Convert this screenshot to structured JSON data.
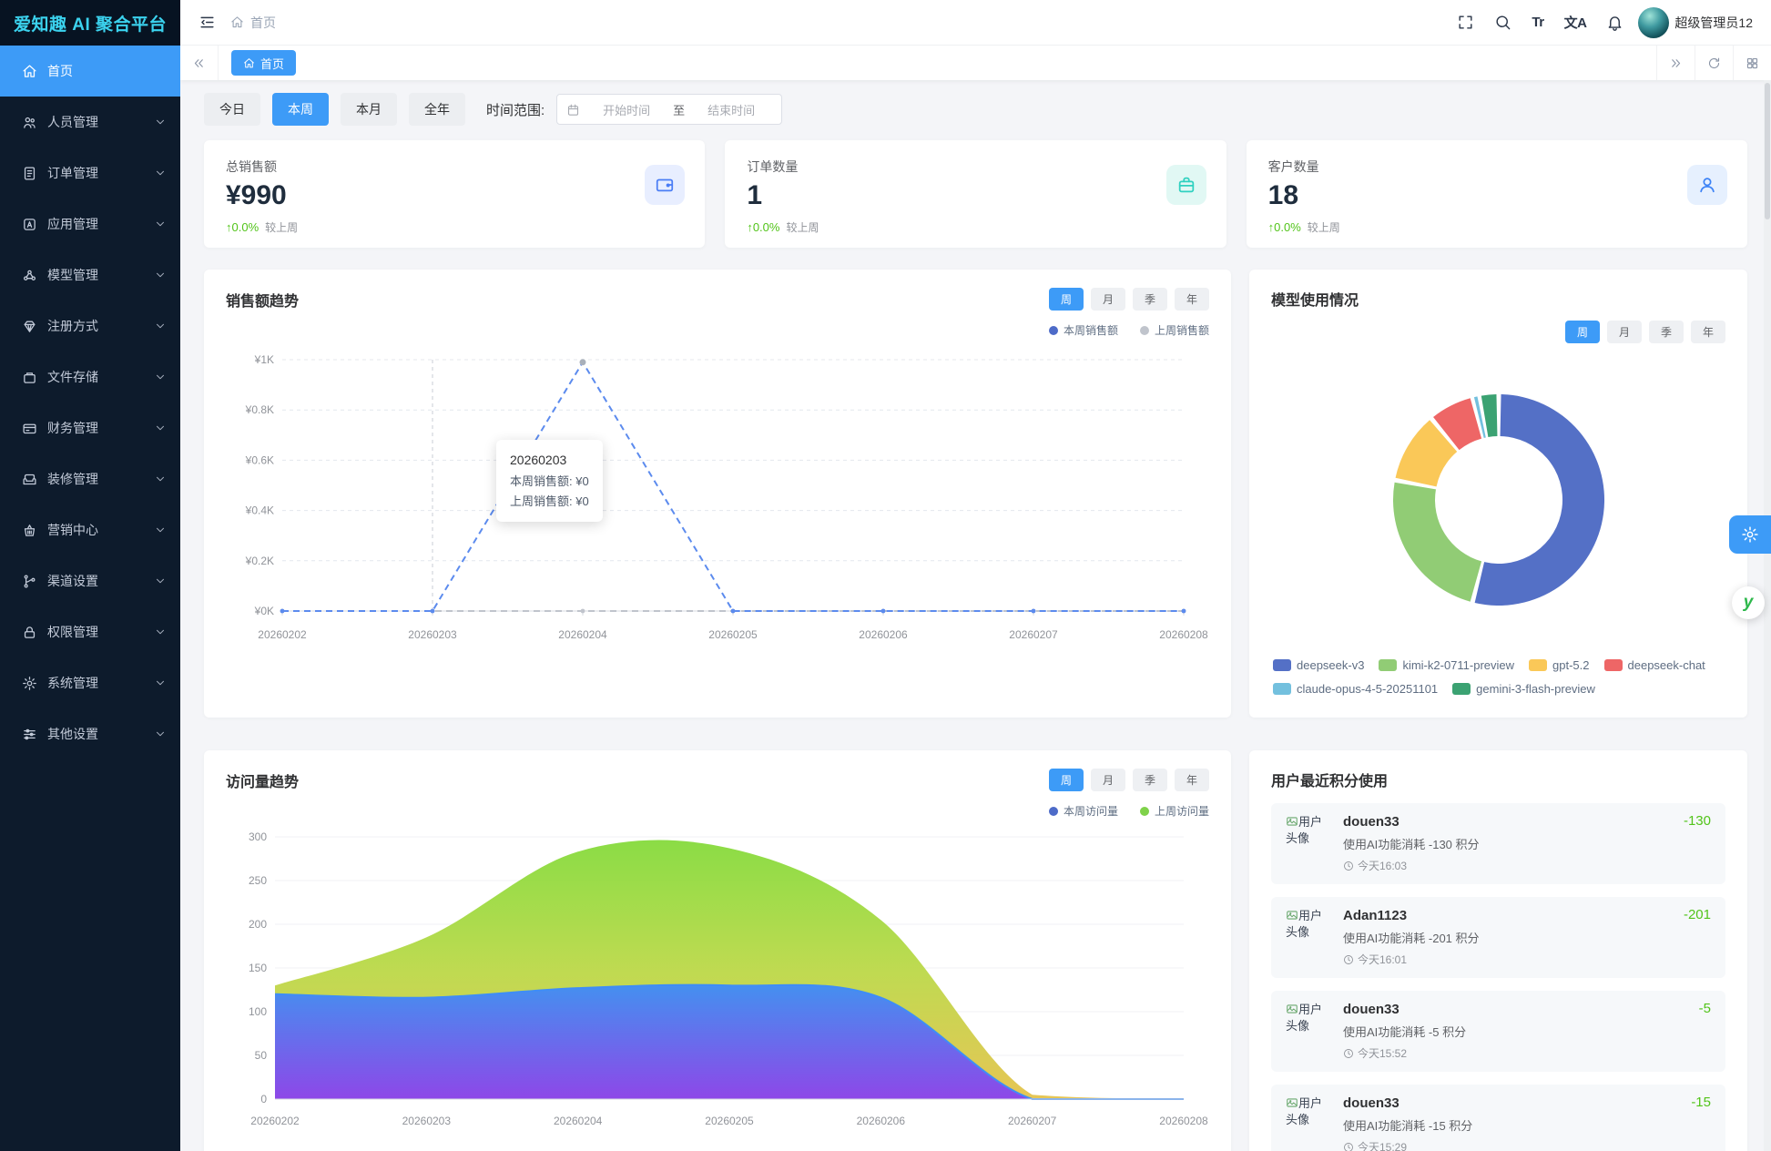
{
  "app": {
    "title": "爱知趣 AI 聚合平台",
    "user_name": "超级管理员12",
    "accent_color": "#3d9bf7"
  },
  "navbar": {
    "breadcrumb": "首页",
    "tools": [
      {
        "icon": "fullscreen-icon"
      },
      {
        "icon": "search-icon"
      },
      {
        "icon": "font-size-icon",
        "text": "Tr"
      },
      {
        "icon": "translate-icon",
        "text": "文A"
      },
      {
        "icon": "bell-icon"
      }
    ]
  },
  "sidebar": {
    "items": [
      {
        "label": "首页",
        "icon": "home-icon",
        "active": true,
        "has_children": false
      },
      {
        "label": "人员管理",
        "icon": "users-icon",
        "has_children": true
      },
      {
        "label": "订单管理",
        "icon": "order-icon",
        "has_children": true
      },
      {
        "label": "应用管理",
        "icon": "app-icon",
        "has_children": true
      },
      {
        "label": "模型管理",
        "icon": "model-icon",
        "has_children": true
      },
      {
        "label": "注册方式",
        "icon": "register-icon",
        "has_children": true
      },
      {
        "label": "文件存储",
        "icon": "storage-icon",
        "has_children": true
      },
      {
        "label": "财务管理",
        "icon": "finance-icon",
        "has_children": true
      },
      {
        "label": "装修管理",
        "icon": "decorate-icon",
        "has_children": true
      },
      {
        "label": "营销中心",
        "icon": "marketing-icon",
        "has_children": true
      },
      {
        "label": "渠道设置",
        "icon": "channel-icon",
        "has_children": true
      },
      {
        "label": "权限管理",
        "icon": "permission-icon",
        "has_children": true
      },
      {
        "label": "系统管理",
        "icon": "system-icon",
        "has_children": true
      },
      {
        "label": "其他设置",
        "icon": "other-icon",
        "has_children": true
      }
    ]
  },
  "tabbar": {
    "active_tab": "首页"
  },
  "filters": {
    "buttons": [
      "今日",
      "本周",
      "本月",
      "全年"
    ],
    "active": "本周",
    "range_label": "时间范围:",
    "start_placeholder": "开始时间",
    "separator": "至",
    "end_placeholder": "结束时间"
  },
  "stats": [
    {
      "label": "总销售额",
      "value": "¥990",
      "change": "0.0%",
      "change_dir": "up",
      "compare": "较上周",
      "icon": "wallet-icon",
      "icon_color": "#4a7df5",
      "icon_bg": "#e8eeff"
    },
    {
      "label": "订单数量",
      "value": "1",
      "change": "0.0%",
      "change_dir": "up",
      "compare": "较上周",
      "icon": "briefcase-icon",
      "icon_color": "#2fd1c0",
      "icon_bg": "#e1f8f4"
    },
    {
      "label": "客户数量",
      "value": "18",
      "change": "0.0%",
      "change_dir": "up",
      "compare": "较上周",
      "icon": "customer-icon",
      "icon_color": "#3b82f6",
      "icon_bg": "#e6f0fe"
    }
  ],
  "chart_data": [
    {
      "id": "sales",
      "type": "line",
      "title": "销售额趋势",
      "period_tabs": [
        "周",
        "月",
        "季",
        "年"
      ],
      "active_tab": "周",
      "categories": [
        "20260202",
        "20260203",
        "20260204",
        "20260205",
        "20260206",
        "20260207",
        "20260208"
      ],
      "series": [
        {
          "name": "本周销售额",
          "color": "#5c8bee",
          "dashed": true,
          "values": [
            0,
            0,
            990,
            0,
            0,
            0,
            0
          ]
        },
        {
          "name": "上周销售额",
          "color": "#c0c4cc",
          "dashed": true,
          "values": [
            0,
            0,
            0,
            0,
            0,
            0,
            0
          ]
        }
      ],
      "legend": [
        {
          "label": "本周销售额",
          "color": "#4d6bc8"
        },
        {
          "label": "上周销售额",
          "color": "#c0c4cc"
        }
      ],
      "ylim": [
        0,
        1000
      ],
      "ytick_labels": [
        "¥0K",
        "¥0.2K",
        "¥0.4K",
        "¥0.6K",
        "¥0.8K",
        "¥1K"
      ],
      "grid": true,
      "legend_position": "top-right",
      "tooltip": {
        "index": 1,
        "title": "20260203",
        "lines": [
          "本周销售额: ¥0",
          "上周销售额: ¥0"
        ]
      }
    },
    {
      "id": "models",
      "type": "pie",
      "title": "模型使用情况",
      "period_tabs": [
        "周",
        "月",
        "季",
        "年"
      ],
      "active_tab": "周",
      "donut": true,
      "legend_position": "bottom",
      "series": [
        {
          "name": "deepseek-v3",
          "value": 54,
          "color": "#5470c6"
        },
        {
          "name": "kimi-k2-0711-preview",
          "value": 24,
          "color": "#91cc75"
        },
        {
          "name": "gpt-5.2",
          "value": 11,
          "color": "#fac858"
        },
        {
          "name": "deepseek-chat",
          "value": 7,
          "color": "#ee6666"
        },
        {
          "name": "claude-opus-4-5-20251101",
          "value": 1,
          "color": "#73c0de"
        },
        {
          "name": "gemini-3-flash-preview",
          "value": 3,
          "color": "#3ba272"
        }
      ]
    },
    {
      "id": "visits",
      "type": "area",
      "title": "访问量趋势",
      "period_tabs": [
        "周",
        "月",
        "季",
        "年"
      ],
      "active_tab": "周",
      "categories": [
        "20260202",
        "20260203",
        "20260204",
        "20260205",
        "20260206",
        "20260207",
        "20260208"
      ],
      "series": [
        {
          "name": "上周访问量",
          "gradient": [
            "#86db3e",
            "#bcd94a",
            "#e5c34e"
          ],
          "values": [
            130,
            185,
            283,
            287,
            205,
            5,
            0
          ]
        },
        {
          "name": "本周访问量",
          "gradient": [
            "#3f8df6",
            "#8a42ee"
          ],
          "line_color": "#3f8df6",
          "values": [
            120,
            116,
            127,
            130,
            116,
            0,
            0
          ]
        }
      ],
      "legend": [
        {
          "label": "本周访问量",
          "color": "#4d6bc8"
        },
        {
          "label": "上周访问量",
          "color": "#7fd24a"
        }
      ],
      "ylim": [
        0,
        300
      ],
      "yticks": [
        0,
        50,
        100,
        150,
        200,
        250,
        300
      ],
      "grid": true,
      "legend_position": "top-right"
    }
  ],
  "points_panel": {
    "title": "用户最近积分使用",
    "avatar_alt": "用户头像",
    "amount_color": "#52c41a",
    "items": [
      {
        "username": "douen33",
        "description": "使用AI功能消耗 -130 积分",
        "time": "今天16:03",
        "amount": "-130"
      },
      {
        "username": "Adan1123",
        "description": "使用AI功能消耗 -201 积分",
        "time": "今天16:01",
        "amount": "-201"
      },
      {
        "username": "douen33",
        "description": "使用AI功能消耗 -5 积分",
        "time": "今天15:52",
        "amount": "-5"
      },
      {
        "username": "douen33",
        "description": "使用AI功能消耗 -15 积分",
        "time": "今天15:29",
        "amount": "-15"
      }
    ]
  },
  "floating": {
    "service_label": "y"
  }
}
